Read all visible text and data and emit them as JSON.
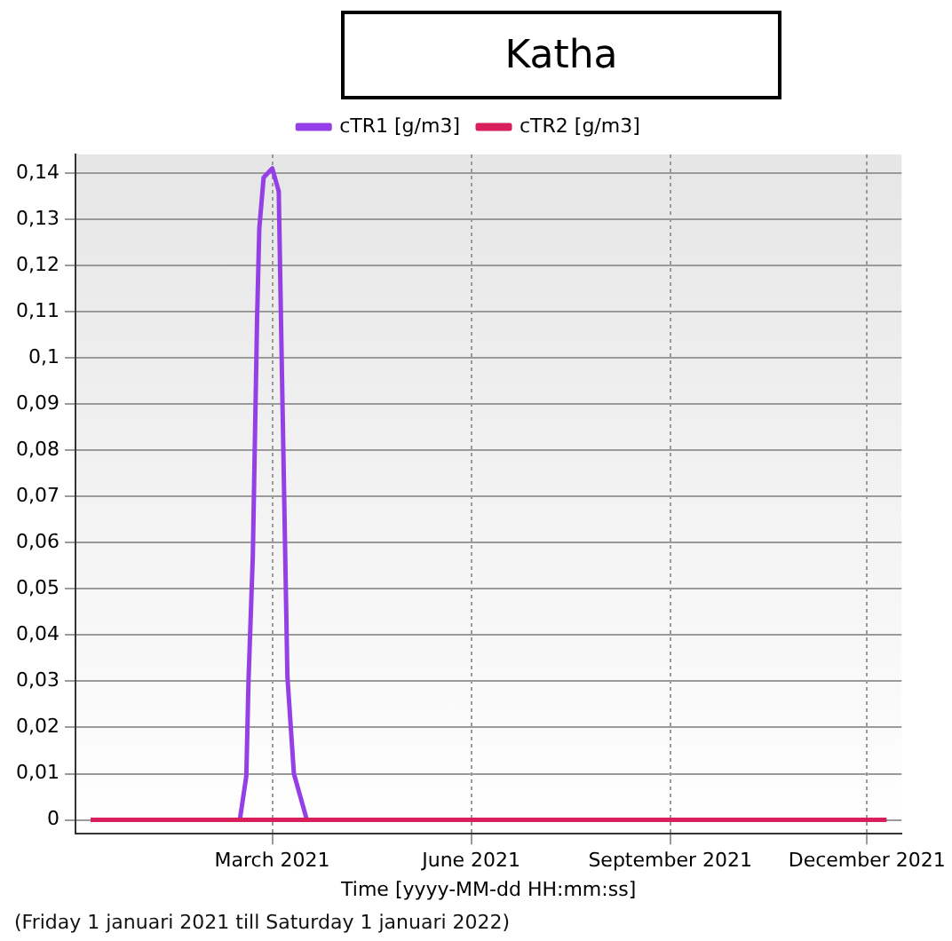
{
  "chart_data": {
    "type": "line",
    "title": "Katha",
    "xlabel": "Time [yyyy-MM-dd HH:mm:ss]",
    "annotations": [
      "(Friday 1 januari 2021 till Saturday 1 januari 2022)"
    ],
    "series": [
      {
        "name": "cTR1 [g/m3]",
        "color": "#9440e6",
        "x": [
          "2020-12-07",
          "2021-02-14",
          "2021-02-17",
          "2021-02-18",
          "2021-02-20",
          "2021-02-21",
          "2021-02-22",
          "2021-02-23",
          "2021-02-25",
          "2021-03-01",
          "2021-03-04",
          "2021-03-05",
          "2021-03-06",
          "2021-03-07",
          "2021-03-08",
          "2021-03-11",
          "2021-03-17",
          "2021-12-10"
        ],
        "values": [
          0,
          0,
          0.0095,
          0.03,
          0.057,
          0.083,
          0.109,
          0.128,
          0.139,
          0.141,
          0.136,
          0.109,
          0.083,
          0.057,
          0.031,
          0.01,
          0,
          0
        ]
      },
      {
        "name": "cTR2 [g/m3]",
        "color": "#d81e5b",
        "x": [
          "2020-12-07",
          "2021-12-10"
        ],
        "values": [
          0,
          0
        ]
      }
    ],
    "xlim": [
      "2020-11-30",
      "2021-12-17"
    ],
    "xticks": [
      {
        "value": "2021-03-01",
        "label": "March 2021"
      },
      {
        "value": "2021-06-01",
        "label": "June 2021"
      },
      {
        "value": "2021-09-01",
        "label": "September 2021"
      },
      {
        "value": "2021-12-01",
        "label": "December 2021"
      }
    ],
    "ylim": [
      -0.003,
      0.144
    ],
    "yticks": [
      0,
      {
        "value": 0.01,
        "label": "0,01"
      },
      {
        "value": 0.02,
        "label": "0,02"
      },
      {
        "value": 0.03,
        "label": "0,03"
      },
      {
        "value": 0.04,
        "label": "0,04"
      },
      {
        "value": 0.05,
        "label": "0,05"
      },
      {
        "value": 0.06,
        "label": "0,06"
      },
      {
        "value": 0.07,
        "label": "0,07"
      },
      {
        "value": 0.08,
        "label": "0,08"
      },
      {
        "value": 0.09,
        "label": "0,09"
      },
      {
        "value": 0.1,
        "label": "0,1"
      },
      {
        "value": 0.11,
        "label": "0,11"
      },
      {
        "value": 0.12,
        "label": "0,12"
      },
      {
        "value": 0.13,
        "label": "0,13"
      },
      {
        "value": 0.14,
        "label": "0,14"
      }
    ],
    "grid": true,
    "legend": "top",
    "marker": "none",
    "line_style": "solid"
  }
}
